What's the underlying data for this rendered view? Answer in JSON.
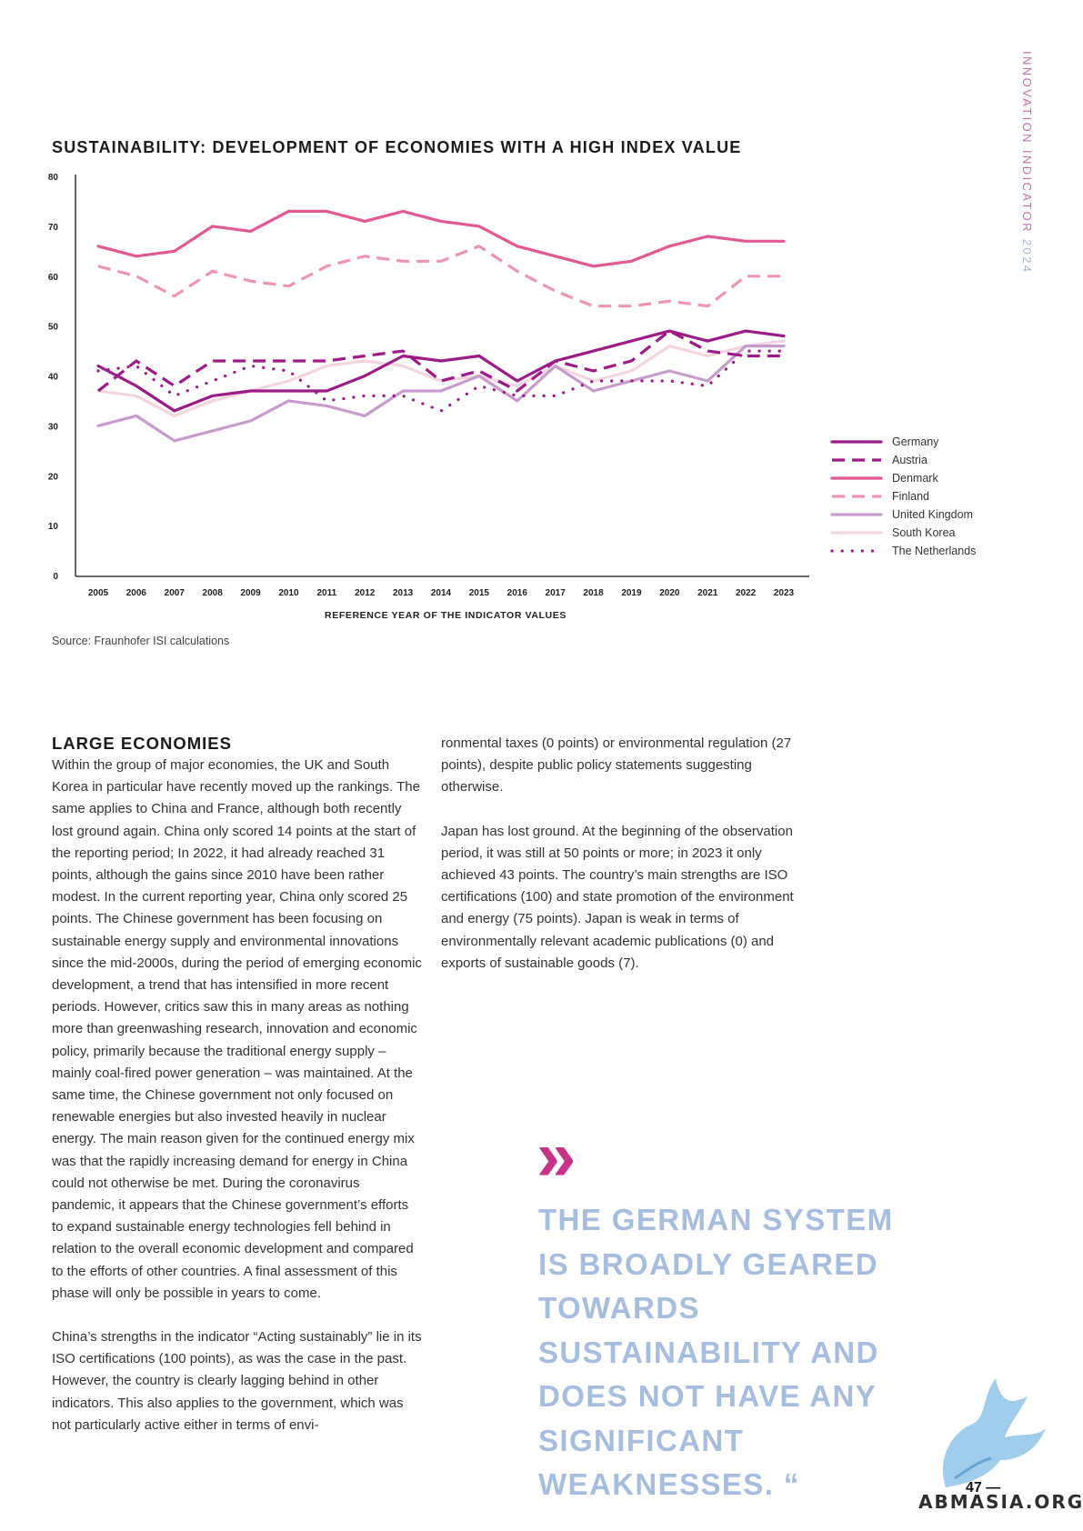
{
  "side_title": {
    "main": "INNOVATION INDICATOR",
    "year": "2024"
  },
  "colors": {
    "Germany": "#9c1b87",
    "Austria": "#9c1b87",
    "Denmark": "#e25893",
    "Finland": "#ed93b8",
    "United Kingdom": "#c79bcd",
    "South Korea": "#f4d4de",
    "The Netherlands": "#9c1b87",
    "quote": "#a6bde0",
    "accent": "#c8338a"
  },
  "chart_data": {
    "type": "line",
    "title": "SUSTAINABILITY: DEVELOPMENT OF ECONOMIES WITH A HIGH INDEX VALUE",
    "xlabel": "REFERENCE YEAR OF THE INDICATOR VALUES",
    "ylabel": "",
    "ylim": [
      0,
      80
    ],
    "yticks": [
      "0",
      "10",
      "20",
      "30",
      "40",
      "50",
      "60",
      "70",
      "80"
    ],
    "x": [
      "2005",
      "2006",
      "2007",
      "2008",
      "2009",
      "2010",
      "2011",
      "2012",
      "2013",
      "2014",
      "2015",
      "2016",
      "2017",
      "2018",
      "2019",
      "2020",
      "2021",
      "2022",
      "2023"
    ],
    "legend_position": "right",
    "series": [
      {
        "name": "Germany",
        "style": "solid",
        "values": [
          42,
          38,
          33,
          36,
          37,
          37,
          37,
          40,
          44,
          43,
          44,
          39,
          43,
          45,
          47,
          49,
          47,
          49,
          48
        ]
      },
      {
        "name": "Austria",
        "style": "dashed",
        "values": [
          37,
          43,
          38,
          43,
          43,
          43,
          43,
          44,
          45,
          39,
          41,
          37,
          43,
          41,
          43,
          49,
          45,
          44,
          44
        ]
      },
      {
        "name": "Denmark",
        "style": "solid",
        "values": [
          66,
          64,
          65,
          70,
          69,
          73,
          73,
          71,
          73,
          71,
          70,
          66,
          64,
          62,
          63,
          66,
          68,
          67,
          67
        ]
      },
      {
        "name": "Finland",
        "style": "dashed",
        "values": [
          62,
          60,
          56,
          61,
          59,
          58,
          62,
          64,
          63,
          63,
          66,
          61,
          57,
          54,
          54,
          55,
          54,
          60,
          60
        ]
      },
      {
        "name": "United Kingdom",
        "style": "solid",
        "values": [
          30,
          32,
          27,
          29,
          31,
          35,
          34,
          32,
          37,
          37,
          40,
          35,
          42,
          37,
          39,
          41,
          39,
          46,
          46
        ]
      },
      {
        "name": "South Korea",
        "style": "solid",
        "values": [
          37,
          36,
          32,
          35,
          37,
          39,
          42,
          43,
          42,
          39,
          40,
          38,
          42,
          39,
          41,
          46,
          44,
          46,
          47
        ]
      },
      {
        "name": "The Netherlands",
        "style": "dotted",
        "values": [
          41,
          42,
          36,
          39,
          42,
          41,
          35,
          36,
          36,
          33,
          38,
          36,
          36,
          39,
          39,
          39,
          38,
          45,
          45
        ]
      }
    ]
  },
  "source": "Source: Fraunhofer ISI calculations",
  "left_column": {
    "heading": "LARGE ECONOMIES",
    "p1": "Within the group of major economies, the UK and South Korea in particular have recently moved up the rankings. The same applies to China and France, although both recently lost ground again. China only scored 14 points at the start of the reporting period; In 2022, it had already reached 31 points, although the gains since 2010 have been rather modest. In the current reporting year, China only scored 25 points. The Chinese government has been focusing on sustainable energy supply and environmental innovations since the mid-2000s, during the period of emerging economic development, a trend that has intensified in more recent periods. However, critics saw this in many areas as nothing more than greenwashing research, innovation and economic policy, primarily because the traditional energy supply – mainly coal-fired power generation – was maintained. At the same time, the Chinese government not only focused on renewable energies but also invested heavily in nuclear energy. The main reason given for the continued energy mix was that the rapidly increasing demand for energy in China could not otherwise be met. During the coronavirus pandemic, it appears that the Chinese government’s efforts to expand sustainable energy technologies fell behind in relation to the overall economic development and compared to the efforts of other countries. A final assessment of this phase will only be possible in years to come.",
    "p2": "China’s strengths in the indicator “Acting sustainably” lie in its ISO certifications (100 points), as was the case in the past. However, the country is clearly lagging behind in other indicators. This also applies to the government, which was not particularly active either in terms of envi-"
  },
  "right_column": {
    "p1": "ronmental taxes (0 points) or environmental regulation (27 points), despite public policy statements suggesting otherwise.",
    "p2": "Japan has lost ground. At the beginning of the observation period, it was still at 50 points or more; in 2023 it only achieved 43 points. The country’s main strengths are ISO certifications (100) and state promotion of the environment and energy (75 points). Japan is weak in terms of environmentally relevant academic publications (0) and exports of sustainable goods (7)."
  },
  "quote": {
    "mark": "»",
    "text": "THE GERMAN SYSTEM IS BROADLY GEARED TOWARDS SUSTAINABILITY AND DOES NOT HAVE ANY SIGNIFICANT WEAKNESSES. “"
  },
  "page_number": "47 —",
  "watermark": "ABMASIA.ORG"
}
